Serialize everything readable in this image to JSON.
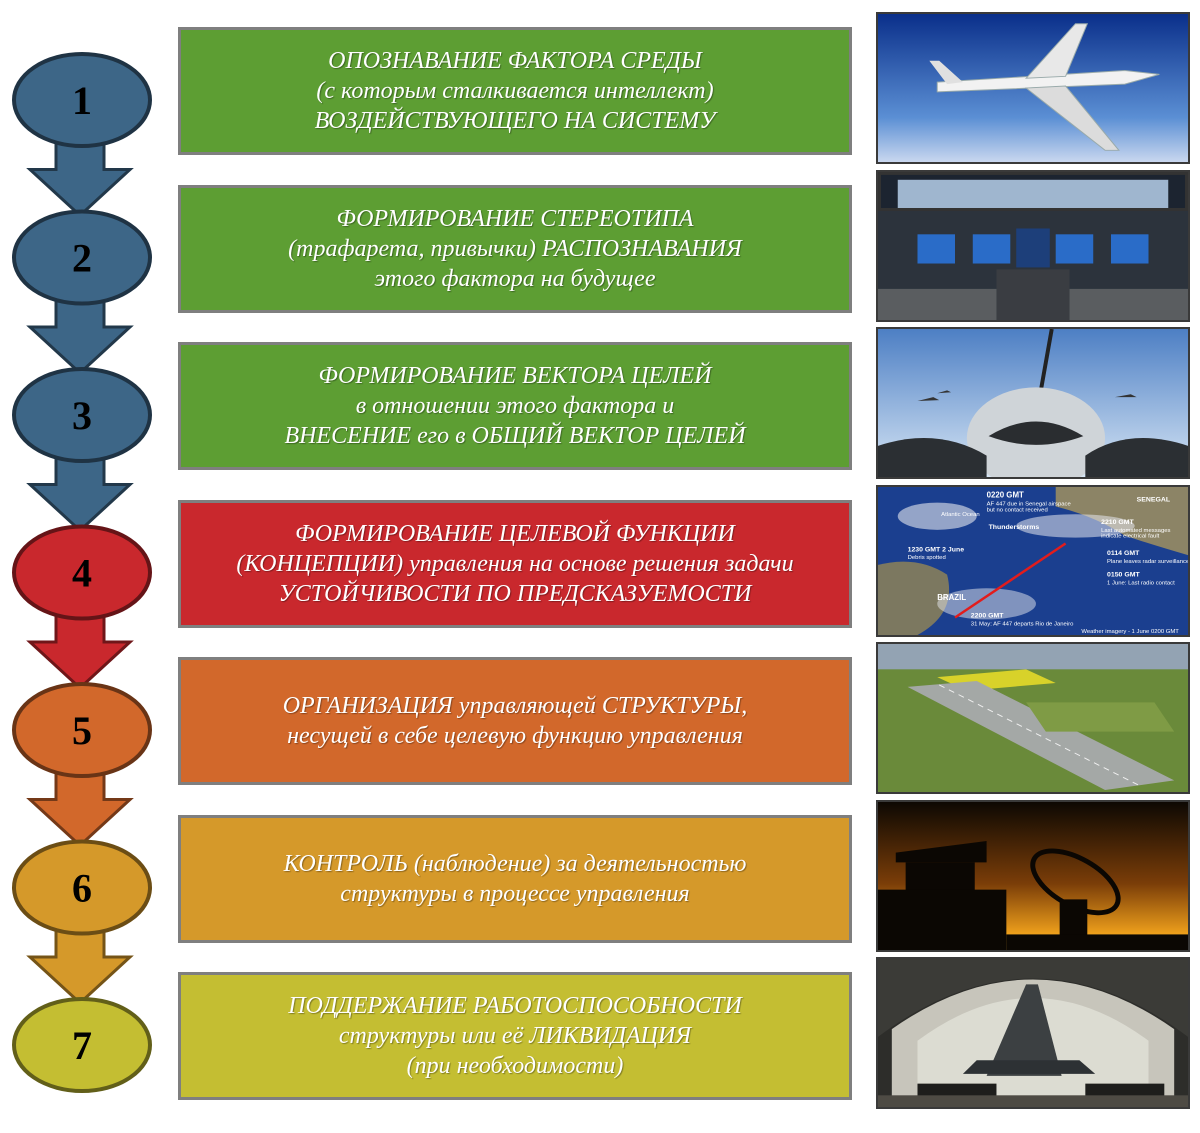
{
  "steps": [
    {
      "number": "1",
      "color": "#3d6687",
      "box_color": "#5d9e33",
      "lines": [
        "ОПОЗНАВАНИЕ ФАКТОРА СРЕДЫ",
        "(с которым сталкивается интеллект)",
        "ВОЗДЕЙСТВУЮЩЕГО НА СИСТЕМУ"
      ],
      "image": "aircraft-in-sky"
    },
    {
      "number": "2",
      "color": "#3d6687",
      "box_color": "#5d9e33",
      "lines": [
        "ФОРМИРОВАНИЕ СТЕРЕОТИПА",
        "(трафарета, привычки) РАСПОЗНАВАНИЯ",
        "этого фактора на будущее"
      ],
      "image": "cockpit-dashboard"
    },
    {
      "number": "3",
      "color": "#3d6687",
      "box_color": "#5d9e33",
      "lines": [
        "ФОРМИРОВАНИЕ ВЕКТОРА ЦЕЛЕЙ",
        "в отношении этого фактора и",
        "ВНЕСЕНИЕ его в ОБЩИЙ ВЕКТОР ЦЕЛЕЙ"
      ],
      "image": "pilot-view"
    },
    {
      "number": "4",
      "color": "#c9282d",
      "box_color": "#c9282d",
      "lines": [
        "ФОРМИРОВАНИЕ ЦЕЛЕВОЙ ФУНКЦИИ",
        "(КОНЦЕПЦИИ) управления на основе решения задачи",
        "УСТОЙЧИВОСТИ ПО ПРЕДСКАЗУЕМОСТИ"
      ],
      "image": "flight-route-map"
    },
    {
      "number": "5",
      "color": "#d2682b",
      "box_color": "#d2682b",
      "lines": [
        "ОРГАНИЗАЦИЯ управляющей СТРУКТУРЫ,",
        "несущей в себе целевую функцию управления"
      ],
      "image": "airfield-aerial"
    },
    {
      "number": "6",
      "color": "#d5992a",
      "box_color": "#d5992a",
      "lines": [
        "КОНТРОЛЬ (наблюдение) за деятельностью",
        "структуры в процессе управления"
      ],
      "image": "control-tower-radar"
    },
    {
      "number": "7",
      "color": "#c4be32",
      "box_color": "#c4be32",
      "lines": [
        "ПОДДЕРЖАНИЕ РАБОТОСПОСОБНОСТИ",
        "структуры или её ЛИКВИДАЦИЯ",
        "(при необходимости)"
      ],
      "image": "hangar-jet"
    }
  ],
  "map_labels": [
    "0220 GMT",
    "AF 447 due in Senegal airspace",
    "but no contact received",
    "SENEGAL",
    "Atlantic Ocean",
    "Thunderstorms",
    "2210 GMT",
    "Last automated messages",
    "indicate electrical fault",
    "1230 GMT 2 June",
    "Debris spotted",
    "0114 GMT",
    "Plane leaves radar surveillance",
    "0150 GMT",
    "1 June: Last radio contact",
    "BRAZIL",
    "2200 GMT",
    "31 May: AF 447 departs Rio de Janeiro",
    "Weather imagery - 1 June 0200 GMT"
  ]
}
